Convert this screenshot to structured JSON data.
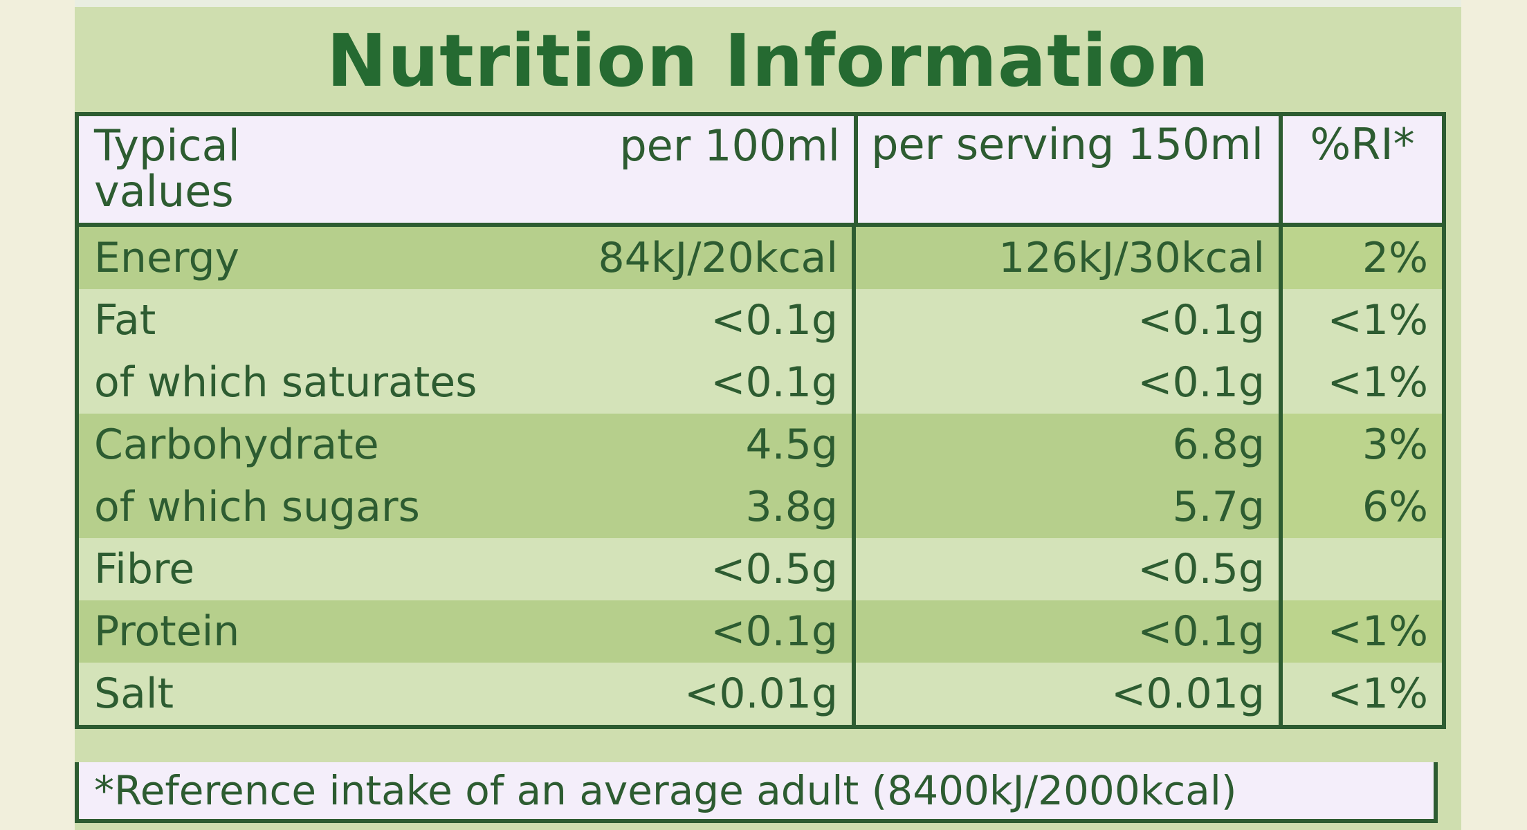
{
  "title": "Nutrition Information",
  "colors": {
    "panel": "#cfdeaf",
    "dark_row": "#b6cf8c",
    "light_row": "#d4e3b9",
    "header_bg": "#f4eefa",
    "text_green": "#2d5c31",
    "title_green": "#256a31"
  },
  "header": {
    "typical": "Typical values",
    "per100": "per 100ml",
    "perServing": "per serving 150ml",
    "ri": "%RI*"
  },
  "rows": [
    {
      "name": "Energy",
      "per100": "84kJ/20kcal",
      "perServing": "126kJ/30kcal",
      "ri": "2%"
    },
    {
      "name": "Fat",
      "per100": "<0.1g",
      "perServing": "<0.1g",
      "ri": "<1%"
    },
    {
      "name": "of which saturates",
      "per100": "<0.1g",
      "perServing": "<0.1g",
      "ri": "<1%"
    },
    {
      "name": "Carbohydrate",
      "per100": "4.5g",
      "perServing": "6.8g",
      "ri": "3%"
    },
    {
      "name": "of which sugars",
      "per100": "3.8g",
      "perServing": "5.7g",
      "ri": "6%"
    },
    {
      "name": "Fibre",
      "per100": "<0.5g",
      "perServing": "<0.5g",
      "ri": ""
    },
    {
      "name": "Protein",
      "per100": "<0.1g",
      "perServing": "<0.1g",
      "ri": "<1%"
    },
    {
      "name": "Salt",
      "per100": "<0.01g",
      "perServing": "<0.01g",
      "ri": "<1%"
    }
  ],
  "footer": "*Reference intake of an average adult (8400kJ/2000kcal)"
}
